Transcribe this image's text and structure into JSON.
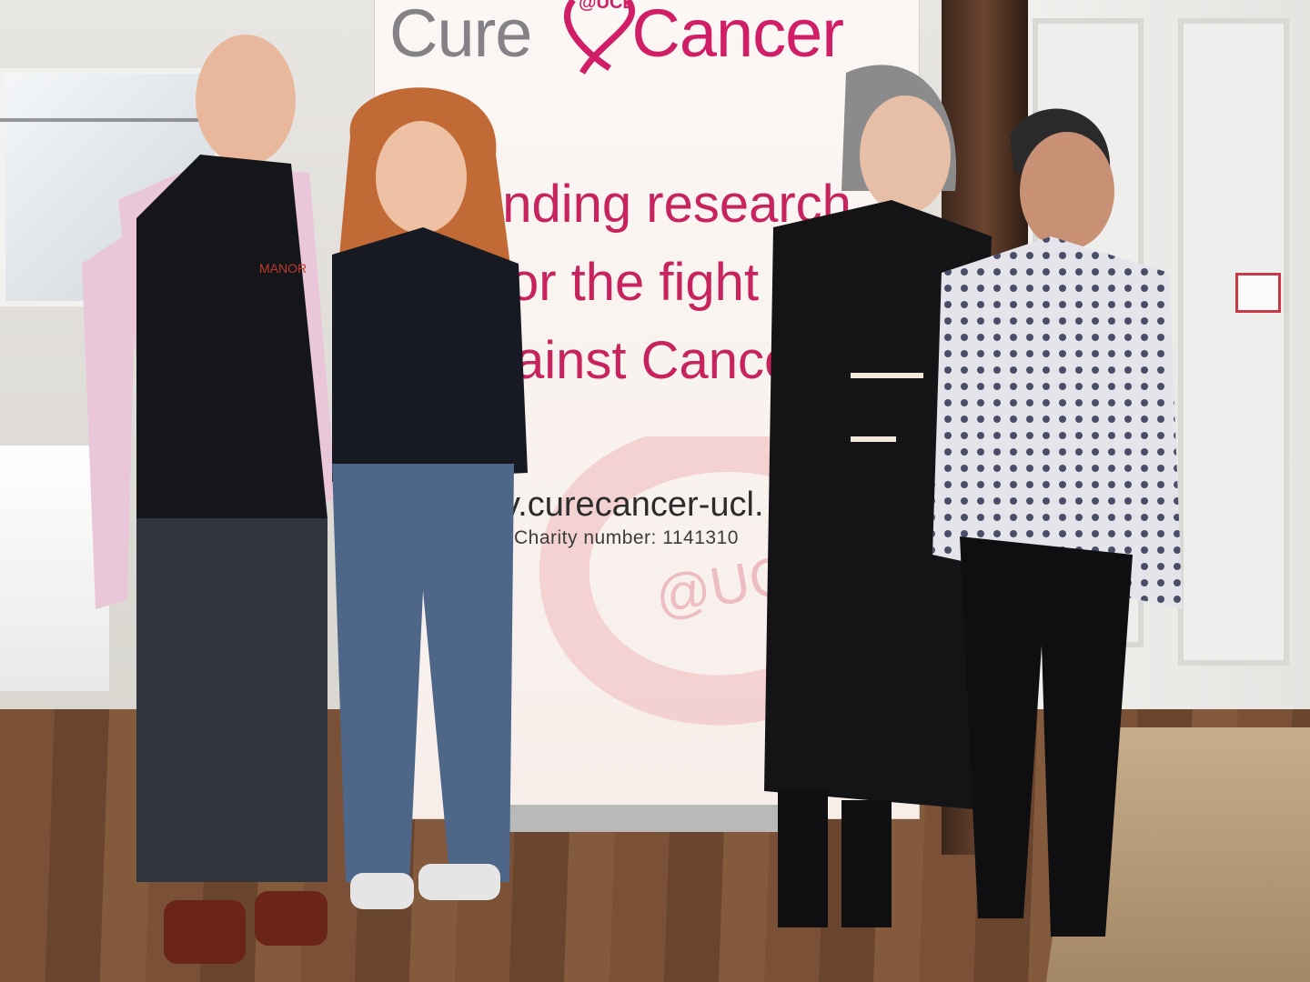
{
  "photo": {
    "subject": "Four people at a charity event",
    "banner": {
      "logo_cure": "Cure",
      "logo_cancer": "Cancer",
      "logo_ucl": "@UCL",
      "slogan_line1": "unding research",
      "slogan_line2": "or the fight",
      "slogan_line3": "ainst Cance",
      "website": "v.curecancer-ucl.",
      "charity_number": "Charity number: 1141310",
      "watermark": "@UC"
    },
    "vest_logo": "MANOR",
    "colors": {
      "brand_pink": "#d01f66",
      "brand_grey": "#848287"
    }
  }
}
